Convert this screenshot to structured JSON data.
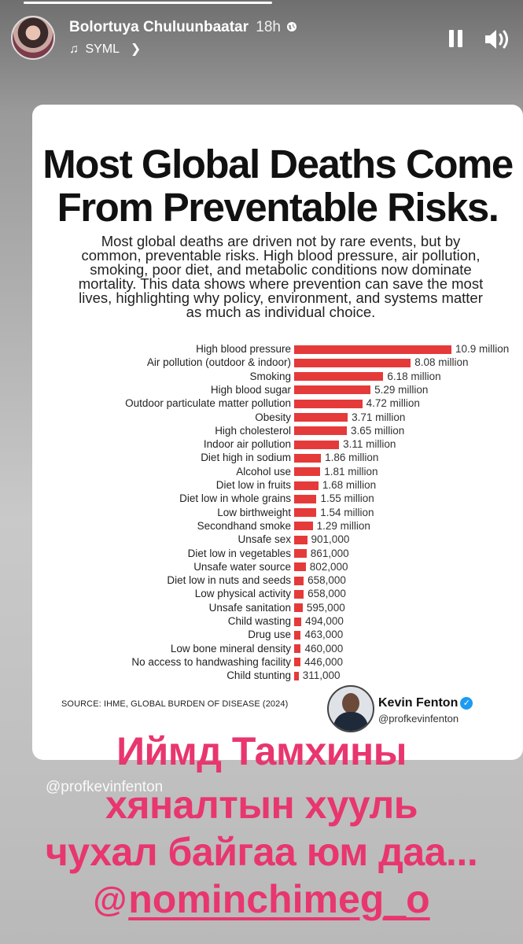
{
  "story": {
    "user_name": "Bolortuya Chuluunbaatar",
    "time": "18h",
    "music_label": "SYML",
    "icons": [
      "globe-icon",
      "music-note-icon",
      "chevron-right-icon",
      "pause-icon",
      "volume-icon"
    ]
  },
  "card": {
    "title_line1": "Most Global Deaths Come",
    "title_line2": "From Preventable Risks.",
    "intro_lines": [
      "Most global deaths are driven not by rare events, but by",
      "common, preventable risks. High blood pressure, air pollution,",
      "smoking, poor diet, and metabolic conditions now dominate",
      "mortality. This data shows where prevention can save the most",
      "lives, highlighting why policy, environment, and systems matter",
      "as much as individual choice."
    ],
    "source": "SOURCE: IHME, GLOBAL BURDEN OF DISEASE (2024)",
    "author_name": "Kevin Fenton",
    "author_handle": "@profkevinfenton",
    "bar_color": "#e53a3a"
  },
  "chart_data": {
    "type": "bar",
    "orientation": "horizontal",
    "title": "Most Global Deaths Come From Preventable Risks.",
    "categories": [
      "High blood pressure",
      "Air pollution (outdoor & indoor)",
      "Smoking",
      "High blood sugar",
      "Outdoor particulate matter pollution",
      "Obesity",
      "High cholesterol",
      "Indoor air pollution",
      "Diet high in sodium",
      "Alcohol use",
      "Diet low in fruits",
      "Diet low in whole grains",
      "Low birthweight",
      "Secondhand smoke",
      "Unsafe sex",
      "Diet low in vegetables",
      "Unsafe water source",
      "Diet low in nuts and seeds",
      "Low physical activity",
      "Unsafe sanitation",
      "Child wasting",
      "Drug use",
      "Low bone mineral density",
      "No access to handwashing facility",
      "Child stunting"
    ],
    "values": [
      10900000,
      8080000,
      6180000,
      5290000,
      4720000,
      3710000,
      3650000,
      3110000,
      1860000,
      1810000,
      1680000,
      1550000,
      1540000,
      1290000,
      901000,
      861000,
      802000,
      658000,
      658000,
      595000,
      494000,
      463000,
      460000,
      446000,
      311000
    ],
    "value_labels": [
      "10.9 million",
      "8.08 million",
      "6.18 million",
      "5.29 million",
      "4.72 million",
      "3.71 million",
      "3.65 million",
      "3.11 million",
      "1.86 million",
      "1.81 million",
      "1.68 million",
      "1.55 million",
      "1.54 million",
      "1.29 million",
      "901,000",
      "861,000",
      "802,000",
      "658,000",
      "658,000",
      "595,000",
      "494,000",
      "463,000",
      "460,000",
      "446,000",
      "311,000"
    ],
    "xlabel": "",
    "ylabel": "",
    "xlim": [
      0,
      10900000
    ]
  },
  "overlay": {
    "watermark": "@profkevinfenton",
    "line1": "Иймд Тамхины",
    "line2": "хяналтын хууль",
    "line3": "чухал байгаа юм даа...",
    "mention": "nominchimeg_o",
    "text_color": "#e8366e"
  }
}
